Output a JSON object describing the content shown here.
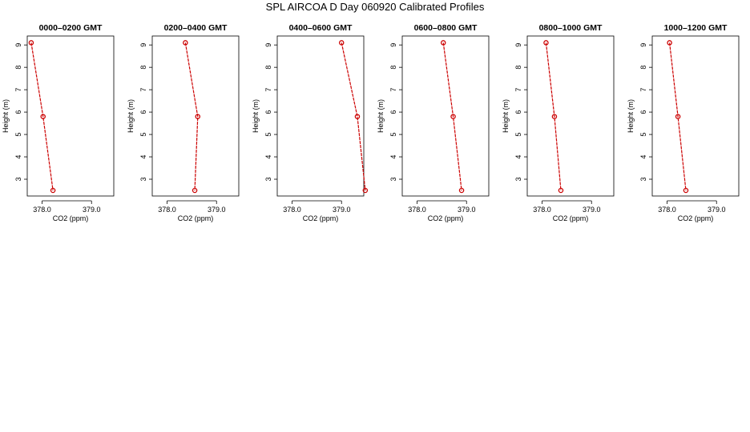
{
  "title": "SPL AIRCOA D  Day 060920  Calibrated Profiles",
  "colors": {
    "series": "#cc0000",
    "axis": "#000000",
    "background": "#ffffff"
  },
  "chart_data": {
    "type": "line",
    "title": "SPL AIRCOA D  Day 060920  Calibrated Profiles",
    "xlabel": "CO2 (ppm)",
    "ylabel": "Height (m)",
    "xlim": [
      377.7,
      379.45
    ],
    "ylim": [
      2.25,
      9.4
    ],
    "x_ticks": [
      "378.0",
      "379.0"
    ],
    "y_ticks": [
      "3",
      "4",
      "5",
      "6",
      "7",
      "8",
      "9"
    ],
    "grid": false,
    "panels": [
      {
        "title": "0000–0200 GMT",
        "points": [
          {
            "co2": 377.78,
            "height": 9.1
          },
          {
            "co2": 378.02,
            "height": 5.8
          },
          {
            "co2": 378.22,
            "height": 2.5
          }
        ]
      },
      {
        "title": "0200–0400 GMT",
        "points": [
          {
            "co2": 378.37,
            "height": 9.1
          },
          {
            "co2": 378.62,
            "height": 5.8
          },
          {
            "co2": 378.56,
            "height": 2.5
          }
        ]
      },
      {
        "title": "0400–0600 GMT",
        "points": [
          {
            "co2": 379.0,
            "height": 9.1
          },
          {
            "co2": 379.32,
            "height": 5.8
          },
          {
            "co2": 379.48,
            "height": 2.5
          }
        ]
      },
      {
        "title": "0600–0800 GMT",
        "points": [
          {
            "co2": 378.53,
            "height": 9.1
          },
          {
            "co2": 378.73,
            "height": 5.8
          },
          {
            "co2": 378.9,
            "height": 2.5
          }
        ]
      },
      {
        "title": "0800–1000 GMT",
        "points": [
          {
            "co2": 378.08,
            "height": 9.1
          },
          {
            "co2": 378.25,
            "height": 5.8
          },
          {
            "co2": 378.38,
            "height": 2.5
          }
        ]
      },
      {
        "title": "1000–1200 GMT",
        "points": [
          {
            "co2": 378.05,
            "height": 9.1
          },
          {
            "co2": 378.22,
            "height": 5.8
          },
          {
            "co2": 378.38,
            "height": 2.5
          }
        ]
      }
    ]
  }
}
